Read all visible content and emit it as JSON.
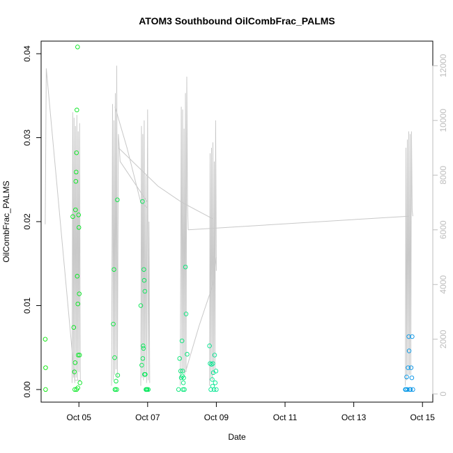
{
  "chart_data": {
    "type": "scatter",
    "title": "ATOM3 Southbound OilCombFrac_PALMS",
    "xlabel": "Date",
    "ylabel": "OilCombFrac_PALMS",
    "x_ticks": [
      "Oct 05",
      "Oct 07",
      "Oct 09",
      "Oct 11",
      "Oct 13",
      "Oct 15"
    ],
    "y_ticks": [
      "0.00",
      "0.01",
      "0.02",
      "0.03",
      "0.04"
    ],
    "y2_ticks": [
      "0",
      "2000",
      "4000",
      "6000",
      "8000",
      "10000",
      "12000"
    ],
    "xlim_days": [
      3.9,
      15.3
    ],
    "ylim": [
      -0.0015,
      0.0415
    ],
    "y2lim": [
      -300,
      12900
    ],
    "grid": false,
    "legend": "none",
    "series": [
      {
        "type": "scatter",
        "points": [
          [
            4.02,
            0.006
          ],
          [
            4.03,
            0.0026
          ],
          [
            4.03,
            0.0
          ],
          [
            4.82,
            0.0206
          ],
          [
            4.85,
            0.0074
          ],
          [
            4.87,
            0.0021
          ],
          [
            4.88,
            0.0
          ],
          [
            4.89,
            0.0032
          ],
          [
            4.9,
            0.0214
          ],
          [
            4.91,
            0.0248
          ],
          [
            4.92,
            0.0259
          ],
          [
            4.93,
            0.0282
          ],
          [
            4.94,
            0.0333
          ],
          [
            4.95,
            0.0135
          ],
          [
            4.96,
            0.0408
          ],
          [
            4.97,
            0.0102
          ],
          [
            4.98,
            0.0041
          ],
          [
            4.99,
            0.0208
          ],
          [
            5.0,
            0.0193
          ],
          [
            5.01,
            0.0114
          ],
          [
            5.02,
            0.0041
          ],
          [
            5.03,
            0.0008
          ],
          [
            4.93,
            0.0
          ],
          [
            4.97,
            0.0002
          ],
          [
            6.0,
            0.0078
          ],
          [
            6.02,
            0.0143
          ],
          [
            6.04,
            0.0038
          ],
          [
            6.05,
            0.0
          ],
          [
            6.06,
            0.0
          ],
          [
            6.08,
            0.001
          ],
          [
            6.1,
            0.0
          ],
          [
            6.12,
            0.0226
          ],
          [
            6.13,
            0.0017
          ],
          [
            6.8,
            0.01
          ],
          [
            6.83,
            0.0029
          ],
          [
            6.85,
            0.0224
          ],
          [
            6.86,
            0.0037
          ],
          [
            6.87,
            0.0052
          ],
          [
            6.88,
            0.0049
          ],
          [
            6.89,
            0.0143
          ],
          [
            6.9,
            0.013
          ],
          [
            6.91,
            0.0018
          ],
          [
            6.92,
            0.0117
          ],
          [
            6.93,
            0.0018
          ],
          [
            6.95,
            0.0
          ],
          [
            6.97,
            0.0
          ],
          [
            6.99,
            0.0
          ],
          [
            7.02,
            0.0
          ],
          [
            7.9,
            0.0
          ],
          [
            7.93,
            0.0037
          ],
          [
            7.96,
            0.0022
          ],
          [
            7.98,
            0.0014
          ],
          [
            8.0,
            0.0058
          ],
          [
            8.01,
            0.0016
          ],
          [
            8.02,
            0.0022
          ],
          [
            8.03,
            0.0
          ],
          [
            8.04,
            0.0008
          ],
          [
            8.05,
            0.0014
          ],
          [
            8.07,
            0.0
          ],
          [
            8.1,
            0.0146
          ],
          [
            8.12,
            0.009
          ],
          [
            8.15,
            0.0042
          ],
          [
            8.8,
            0.0052
          ],
          [
            8.82,
            0.0031
          ],
          [
            8.84,
            0.0
          ],
          [
            8.86,
            0.003
          ],
          [
            8.88,
            0.0012
          ],
          [
            8.89,
            0.0004
          ],
          [
            8.9,
            0.0031
          ],
          [
            8.91,
            0.002
          ],
          [
            8.93,
            0.0
          ],
          [
            8.95,
            0.0041
          ],
          [
            8.97,
            0.0008
          ],
          [
            8.99,
            0.0022
          ],
          [
            9.0,
            0.0
          ],
          [
            14.5,
            0.0
          ],
          [
            14.52,
            0.0
          ],
          [
            14.54,
            0.0015
          ],
          [
            14.56,
            0.0
          ],
          [
            14.58,
            0.0026
          ],
          [
            14.6,
            0.0063
          ],
          [
            14.61,
            0.0046
          ],
          [
            14.63,
            0.0
          ],
          [
            14.65,
            0.0
          ],
          [
            14.67,
            0.0026
          ],
          [
            14.69,
            0.0014
          ],
          [
            14.7,
            0.0063
          ],
          [
            14.72,
            0.0
          ]
        ]
      },
      {
        "type": "line",
        "axis": "right",
        "segments": [
          [
            [
              4.02,
              6200
            ],
            [
              4.05,
              11900
            ],
            [
              4.88,
              500
            ],
            [
              5.05,
              500
            ]
          ],
          [
            [
              4.8,
              400
            ],
            [
              4.82,
              10300
            ],
            [
              4.84,
              600
            ],
            [
              4.86,
              10100
            ],
            [
              4.88,
              400
            ],
            [
              4.9,
              9800
            ],
            [
              4.92,
              600
            ],
            [
              4.94,
              10200
            ],
            [
              4.96,
              500
            ],
            [
              4.98,
              9600
            ],
            [
              5.0,
              800
            ],
            [
              5.02,
              9900
            ],
            [
              5.04,
              500
            ]
          ],
          [
            [
              5.95,
              300
            ],
            [
              5.98,
              10600
            ],
            [
              6.0,
              500
            ],
            [
              6.02,
              10000
            ],
            [
              6.04,
              700
            ],
            [
              6.06,
              11000
            ],
            [
              6.08,
              900
            ],
            [
              6.1,
              12000
            ],
            [
              6.12,
              600
            ],
            [
              6.15,
              9500
            ],
            [
              6.2,
              8500
            ],
            [
              7.0,
              7000
            ]
          ],
          [
            [
              6.05,
              10500
            ],
            [
              6.4,
              9000
            ],
            [
              6.8,
              7000
            ],
            [
              7.0,
              6800
            ]
          ],
          [
            [
              6.8,
              300
            ],
            [
              6.82,
              9800
            ],
            [
              6.84,
              600
            ],
            [
              6.86,
              9500
            ],
            [
              6.88,
              500
            ],
            [
              6.9,
              10000
            ],
            [
              6.92,
              600
            ],
            [
              6.95,
              8000
            ],
            [
              6.97,
              400
            ],
            [
              7.0,
              10400
            ],
            [
              7.02,
              500
            ],
            [
              7.04,
              6300
            ],
            [
              7.06,
              400
            ]
          ],
          [
            [
              6.15,
              9000
            ],
            [
              7.3,
              7600
            ],
            [
              8.0,
              7000
            ],
            [
              8.9,
              6400
            ]
          ],
          [
            [
              7.95,
              300
            ],
            [
              7.98,
              10500
            ],
            [
              8.0,
              800
            ],
            [
              8.02,
              10400
            ],
            [
              8.04,
              800
            ],
            [
              8.06,
              9700
            ],
            [
              8.08,
              700
            ],
            [
              8.1,
              11000
            ],
            [
              8.12,
              800
            ],
            [
              8.14,
              11600
            ],
            [
              8.16,
              7000
            ],
            [
              8.18,
              6000
            ]
          ],
          [
            [
              8.18,
              6000
            ],
            [
              14.6,
              6500
            ]
          ],
          [
            [
              8.8,
              300
            ],
            [
              8.82,
              8800
            ],
            [
              8.84,
              600
            ],
            [
              8.86,
              9000
            ],
            [
              8.88,
              500
            ],
            [
              8.9,
              9200
            ],
            [
              8.92,
              700
            ],
            [
              8.94,
              8500
            ],
            [
              8.96,
              900
            ],
            [
              8.98,
              10000
            ],
            [
              9.0,
              4500
            ]
          ],
          [
            [
              8.1,
              800
            ],
            [
              8.5,
              2500
            ],
            [
              8.9,
              4000
            ],
            [
              9.0,
              5000
            ]
          ],
          [
            [
              14.5,
              300
            ],
            [
              14.52,
              9000
            ],
            [
              14.54,
              500
            ],
            [
              14.56,
              9300
            ],
            [
              14.58,
              700
            ],
            [
              14.6,
              9600
            ],
            [
              14.62,
              700
            ],
            [
              14.64,
              9500
            ],
            [
              14.66,
              700
            ],
            [
              14.68,
              9600
            ],
            [
              14.7,
              6700
            ],
            [
              14.72,
              6500
            ]
          ]
        ]
      }
    ]
  }
}
